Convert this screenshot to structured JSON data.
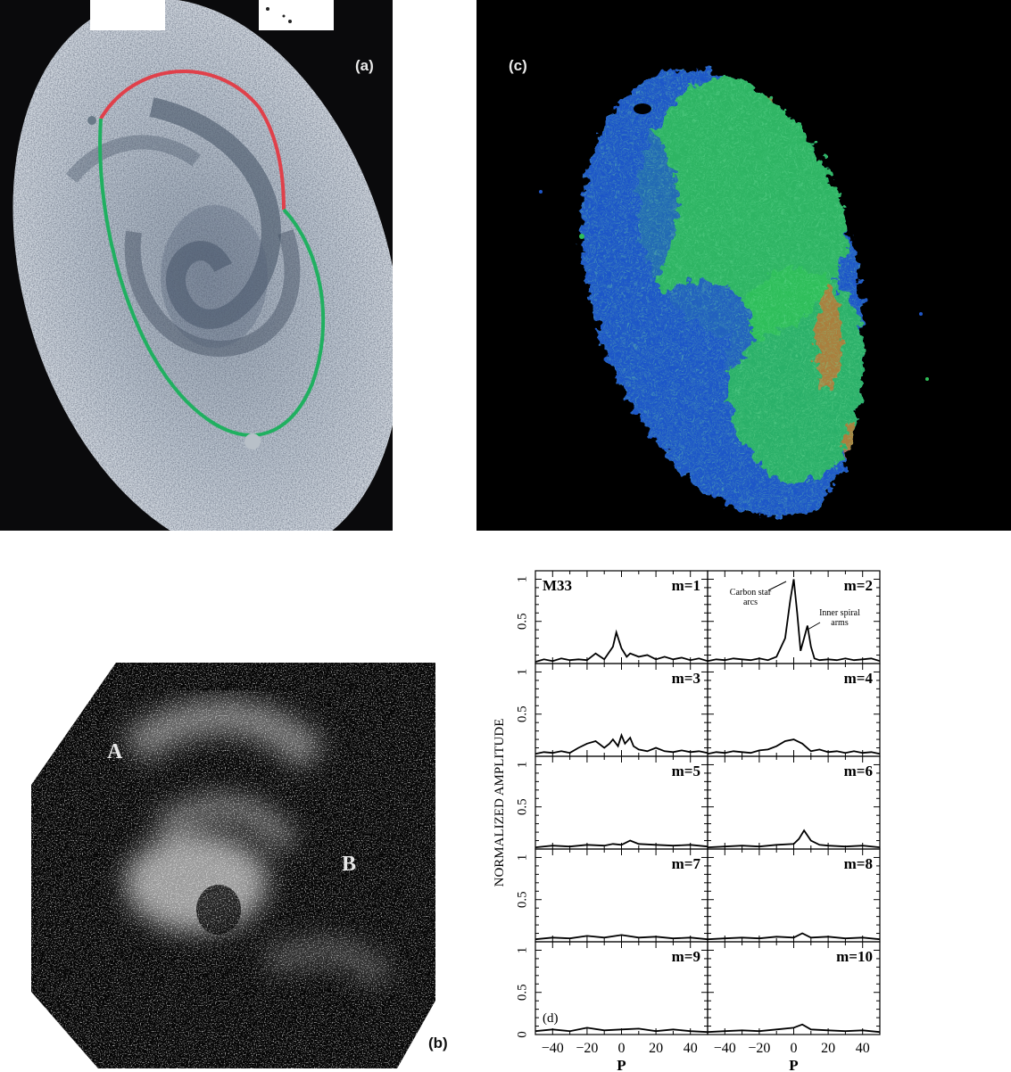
{
  "figure": {
    "panels": [
      {
        "id": "a",
        "label": "(a)",
        "description_visible": false
      },
      {
        "id": "b",
        "label": "(b)",
        "region_labels": [
          "A",
          "B"
        ]
      },
      {
        "id": "c",
        "label": "(c)"
      },
      {
        "id": "d",
        "label": "(d)"
      }
    ]
  },
  "panel_a": {
    "label": "(a)",
    "ellipse_colors": {
      "upper_arc": "#e0404a",
      "lower_arc": "#20b060"
    }
  },
  "panel_b": {
    "label": "(b)",
    "label_A": "A",
    "label_B": "B"
  },
  "panel_c": {
    "label": "(c)",
    "colors": {
      "blue": "#1f56c8",
      "green": "#2fbf58",
      "orange": "#e06a2a"
    }
  },
  "panel_d": {
    "label": "(d)",
    "galaxy": "M33",
    "ylabel": "NORMALIZED AMPLITUDE",
    "xlabel": "P",
    "annotations": [
      "Carbon star arcs",
      "Inner spiral arms"
    ]
  },
  "chart_data": {
    "type": "line",
    "title": "",
    "xlabel": "P",
    "ylabel": "NORMALIZED AMPLITUDE",
    "xlim": [
      -50,
      50
    ],
    "ylim": [
      0,
      1.1
    ],
    "xticks": [
      -40,
      -20,
      0,
      20,
      40
    ],
    "yticks": [
      0,
      0.5,
      1
    ],
    "grid": false,
    "layout": "5 rows x 2 columns small multiples",
    "series": [
      {
        "name": "m=1",
        "x": [
          -50,
          -45,
          -40,
          -35,
          -30,
          -25,
          -20,
          -15,
          -10,
          -5,
          -3,
          0,
          3,
          5,
          10,
          15,
          20,
          25,
          30,
          35,
          40,
          45,
          50
        ],
        "values": [
          0.02,
          0.05,
          0.03,
          0.06,
          0.04,
          0.05,
          0.04,
          0.12,
          0.05,
          0.2,
          0.37,
          0.18,
          0.08,
          0.12,
          0.08,
          0.1,
          0.05,
          0.08,
          0.05,
          0.07,
          0.04,
          0.06,
          0.03
        ]
      },
      {
        "name": "m=2",
        "x": [
          -50,
          -45,
          -40,
          -35,
          -30,
          -25,
          -20,
          -15,
          -10,
          -5,
          -2,
          0,
          2,
          4,
          6,
          8,
          10,
          12,
          15,
          20,
          25,
          30,
          35,
          40,
          45,
          50
        ],
        "values": [
          0.03,
          0.05,
          0.04,
          0.06,
          0.05,
          0.04,
          0.06,
          0.04,
          0.08,
          0.3,
          0.75,
          1.0,
          0.6,
          0.15,
          0.3,
          0.45,
          0.2,
          0.06,
          0.04,
          0.05,
          0.04,
          0.06,
          0.04,
          0.05,
          0.06,
          0.03
        ]
      },
      {
        "name": "m=3",
        "x": [
          -50,
          -45,
          -40,
          -35,
          -30,
          -25,
          -20,
          -15,
          -10,
          -7,
          -5,
          -2,
          0,
          2,
          5,
          7,
          10,
          15,
          20,
          25,
          30,
          35,
          40,
          45,
          50
        ],
        "values": [
          0.03,
          0.05,
          0.04,
          0.06,
          0.04,
          0.1,
          0.15,
          0.18,
          0.1,
          0.15,
          0.2,
          0.12,
          0.25,
          0.15,
          0.22,
          0.12,
          0.08,
          0.06,
          0.1,
          0.06,
          0.05,
          0.07,
          0.05,
          0.06,
          0.04
        ]
      },
      {
        "name": "m=4",
        "x": [
          -50,
          -45,
          -40,
          -35,
          -30,
          -25,
          -20,
          -15,
          -10,
          -5,
          0,
          5,
          10,
          15,
          20,
          25,
          30,
          35,
          40,
          45,
          50
        ],
        "values": [
          0.03,
          0.05,
          0.04,
          0.06,
          0.05,
          0.04,
          0.07,
          0.08,
          0.12,
          0.18,
          0.2,
          0.15,
          0.06,
          0.08,
          0.05,
          0.06,
          0.04,
          0.06,
          0.04,
          0.05,
          0.03
        ]
      },
      {
        "name": "m=5",
        "x": [
          -50,
          -40,
          -30,
          -20,
          -10,
          -5,
          0,
          5,
          10,
          20,
          30,
          40,
          50
        ],
        "values": [
          0.02,
          0.04,
          0.03,
          0.05,
          0.04,
          0.06,
          0.05,
          0.1,
          0.06,
          0.05,
          0.04,
          0.05,
          0.03
        ]
      },
      {
        "name": "m=6",
        "x": [
          -50,
          -40,
          -30,
          -20,
          -10,
          0,
          3,
          6,
          10,
          15,
          20,
          30,
          40,
          50
        ],
        "values": [
          0.02,
          0.03,
          0.04,
          0.03,
          0.05,
          0.06,
          0.12,
          0.22,
          0.1,
          0.05,
          0.04,
          0.03,
          0.04,
          0.02
        ]
      },
      {
        "name": "m=7",
        "x": [
          -50,
          -40,
          -30,
          -20,
          -10,
          0,
          10,
          20,
          30,
          40,
          50
        ],
        "values": [
          0.03,
          0.05,
          0.04,
          0.07,
          0.05,
          0.08,
          0.05,
          0.06,
          0.04,
          0.05,
          0.03
        ]
      },
      {
        "name": "m=8",
        "x": [
          -50,
          -40,
          -30,
          -20,
          -10,
          0,
          5,
          10,
          20,
          30,
          40,
          50
        ],
        "values": [
          0.03,
          0.04,
          0.05,
          0.04,
          0.06,
          0.05,
          0.1,
          0.05,
          0.06,
          0.04,
          0.05,
          0.03
        ]
      },
      {
        "name": "m=9",
        "x": [
          -50,
          -40,
          -30,
          -20,
          -10,
          0,
          10,
          20,
          30,
          40,
          50
        ],
        "values": [
          0.04,
          0.06,
          0.04,
          0.08,
          0.05,
          0.06,
          0.07,
          0.04,
          0.06,
          0.04,
          0.03
        ]
      },
      {
        "name": "m=10",
        "x": [
          -50,
          -40,
          -30,
          -20,
          -10,
          0,
          5,
          10,
          20,
          30,
          40,
          50
        ],
        "values": [
          0.03,
          0.04,
          0.05,
          0.04,
          0.06,
          0.08,
          0.12,
          0.06,
          0.05,
          0.04,
          0.05,
          0.03
        ]
      }
    ]
  }
}
